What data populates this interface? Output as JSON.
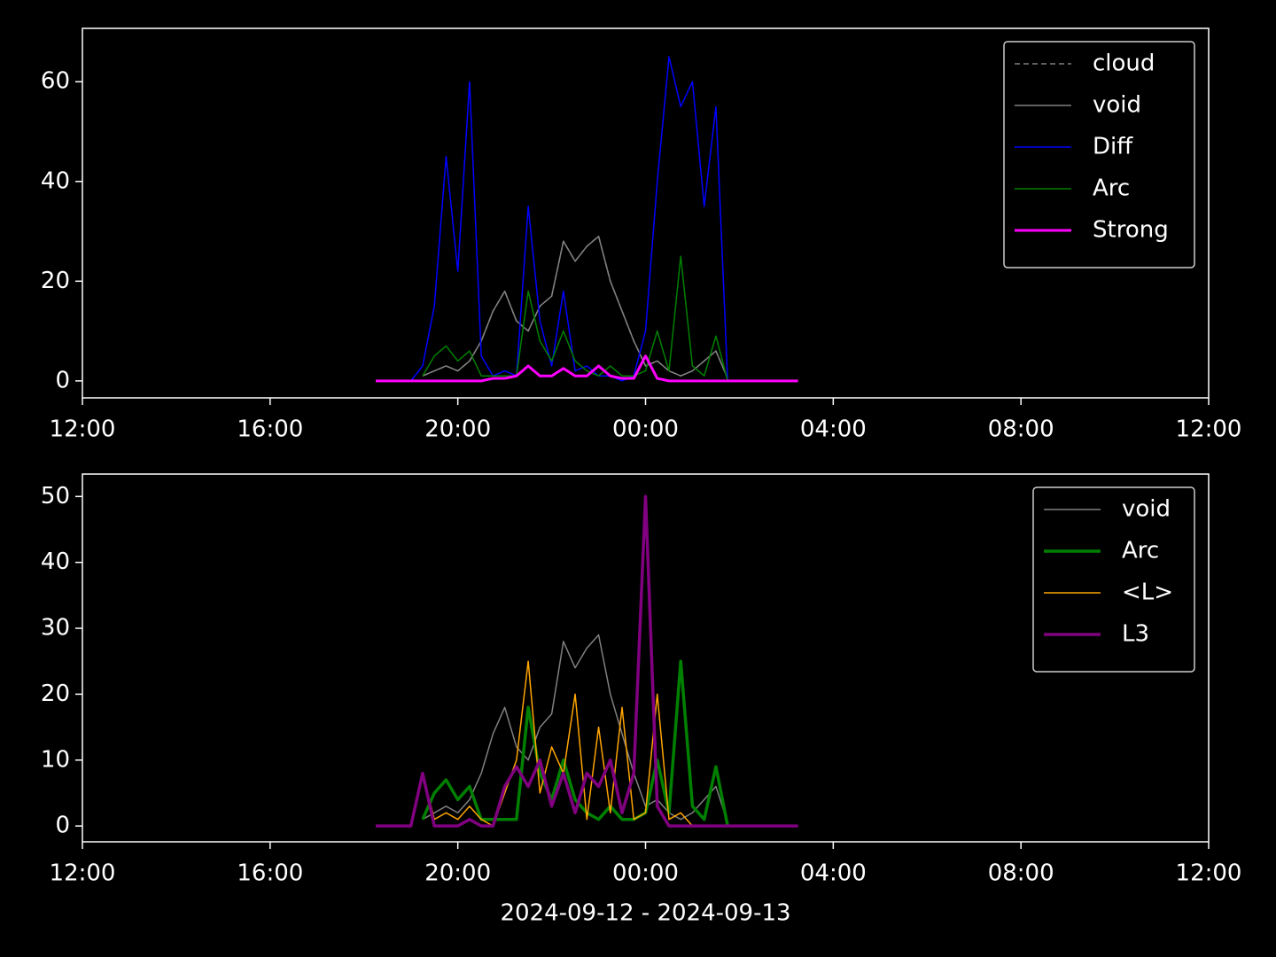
{
  "chart_data": [
    {
      "type": "line",
      "legend": "upper right",
      "xlim": [
        0,
        24
      ],
      "ylim": [
        -3.4,
        70.7
      ],
      "xticks": [
        {
          "value": 0,
          "label": "12:00"
        },
        {
          "value": 4,
          "label": "16:00"
        },
        {
          "value": 8,
          "label": "20:00"
        },
        {
          "value": 12,
          "label": "00:00"
        },
        {
          "value": 16,
          "label": "04:00"
        },
        {
          "value": 20,
          "label": "08:00"
        },
        {
          "value": 24,
          "label": "12:00"
        }
      ],
      "yticks": [
        0,
        20,
        40,
        60
      ],
      "x": [
        6.25,
        6.5,
        6.75,
        7,
        7.25,
        7.5,
        7.75,
        8,
        8.25,
        8.5,
        8.75,
        9,
        9.25,
        9.5,
        9.75,
        10,
        10.25,
        10.5,
        10.75,
        11,
        11.25,
        11.5,
        11.75,
        12,
        12.25,
        12.5,
        12.75,
        13,
        13.25,
        13.5,
        13.75,
        14,
        14.25,
        14.5,
        14.75,
        15,
        15.25
      ],
      "series": [
        {
          "name": "cloud",
          "color": "#808080",
          "width": 1.5,
          "style": "dashed",
          "values": [
            null,
            null,
            null,
            null,
            1,
            2,
            3,
            2,
            4,
            8,
            14,
            18,
            12,
            10,
            15,
            17,
            28,
            24,
            27,
            29,
            20,
            14,
            8,
            3,
            4,
            2,
            1,
            2,
            4,
            6,
            0.5,
            null,
            null,
            null,
            null,
            null,
            null
          ]
        },
        {
          "name": "void",
          "color": "#808080",
          "width": 1.5,
          "style": "solid",
          "values": [
            null,
            null,
            null,
            null,
            1,
            2,
            3,
            2,
            4,
            8,
            14,
            18,
            12,
            10,
            15,
            17,
            28,
            24,
            27,
            29,
            20,
            14,
            8,
            3,
            4,
            2,
            1,
            2,
            4,
            6,
            0.5,
            null,
            null,
            null,
            null,
            null,
            null
          ]
        },
        {
          "name": "Diff",
          "color": "#0000ff",
          "width": 1.5,
          "style": "solid",
          "values": [
            null,
            null,
            null,
            0,
            3,
            15,
            45,
            22,
            60,
            5,
            1,
            2,
            1,
            35,
            12,
            3,
            18,
            2,
            3,
            1,
            1,
            0,
            1,
            10,
            40,
            65,
            55,
            60,
            35,
            55,
            0,
            null,
            null,
            null,
            null,
            null,
            null
          ]
        },
        {
          "name": "Arc",
          "color": "#008000",
          "width": 1.5,
          "style": "solid",
          "values": [
            null,
            null,
            null,
            null,
            1,
            5,
            7,
            4,
            6,
            1,
            1,
            1,
            1,
            18,
            8,
            4,
            10,
            4,
            2,
            1,
            3,
            1,
            1,
            2,
            10,
            2,
            25,
            3,
            1,
            9,
            0,
            null,
            null,
            null,
            null,
            null,
            null
          ]
        },
        {
          "name": "Strong",
          "color": "#ff00ff",
          "width": 3,
          "style": "solid",
          "values": [
            0,
            0,
            0,
            0,
            0,
            0,
            0,
            0,
            0,
            0,
            0.5,
            0.5,
            1,
            3,
            1,
            1,
            2.5,
            1,
            1,
            3,
            1,
            0.5,
            0.5,
            5,
            0.5,
            0,
            0,
            0,
            0,
            0,
            0,
            0,
            0,
            0,
            0,
            0,
            0
          ]
        }
      ]
    },
    {
      "type": "line",
      "legend": "upper right",
      "xlim": [
        0,
        24
      ],
      "ylim": [
        -2.4,
        53.4
      ],
      "xlabel": "2024-09-12 - 2024-09-13",
      "xticks": [
        {
          "value": 0,
          "label": "12:00"
        },
        {
          "value": 4,
          "label": "16:00"
        },
        {
          "value": 8,
          "label": "20:00"
        },
        {
          "value": 12,
          "label": "00:00"
        },
        {
          "value": 16,
          "label": "04:00"
        },
        {
          "value": 20,
          "label": "08:00"
        },
        {
          "value": 24,
          "label": "12:00"
        }
      ],
      "yticks": [
        0,
        10,
        20,
        30,
        40,
        50
      ],
      "x": [
        6.25,
        6.5,
        6.75,
        7,
        7.25,
        7.5,
        7.75,
        8,
        8.25,
        8.5,
        8.75,
        9,
        9.25,
        9.5,
        9.75,
        10,
        10.25,
        10.5,
        10.75,
        11,
        11.25,
        11.5,
        11.75,
        12,
        12.25,
        12.5,
        12.75,
        13,
        13.25,
        13.5,
        13.75,
        14,
        14.25,
        14.5,
        14.75,
        15,
        15.25
      ],
      "series": [
        {
          "name": "void",
          "color": "#808080",
          "width": 1.5,
          "style": "solid",
          "values": [
            null,
            null,
            null,
            null,
            1,
            2,
            3,
            2,
            4,
            8,
            14,
            18,
            12,
            10,
            15,
            17,
            28,
            24,
            27,
            29,
            20,
            14,
            8,
            3,
            4,
            2,
            1,
            2,
            4,
            6,
            0.5,
            null,
            null,
            null,
            null,
            null,
            null
          ]
        },
        {
          "name": "Arc",
          "color": "#008000",
          "width": 3.5,
          "style": "solid",
          "values": [
            null,
            null,
            null,
            null,
            1,
            5,
            7,
            4,
            6,
            1,
            1,
            1,
            1,
            18,
            8,
            4,
            10,
            4,
            2,
            1,
            3,
            1,
            1,
            2,
            10,
            2,
            25,
            3,
            1,
            9,
            0,
            null,
            null,
            null,
            null,
            null,
            null
          ]
        },
        {
          "name": "<L>",
          "color": "#ffa500",
          "width": 1.5,
          "style": "solid",
          "values": [
            null,
            null,
            null,
            0,
            8,
            1,
            2,
            1,
            3,
            1,
            0,
            5,
            10,
            25,
            5,
            12,
            8,
            20,
            1,
            15,
            2,
            18,
            1,
            2,
            20,
            1,
            2,
            0,
            0,
            0,
            null,
            null,
            null,
            null,
            null,
            null,
            null
          ]
        },
        {
          "name": "L3",
          "color": "#800080",
          "width": 3.5,
          "style": "solid",
          "values": [
            0,
            0,
            0,
            0,
            8,
            0,
            0,
            0,
            1,
            0,
            0,
            6,
            9,
            6,
            10,
            3,
            8,
            2,
            8,
            6,
            10,
            2,
            8,
            50,
            3,
            0,
            0,
            0,
            0,
            0,
            0,
            0,
            0,
            0,
            0,
            0,
            0
          ]
        }
      ]
    }
  ]
}
